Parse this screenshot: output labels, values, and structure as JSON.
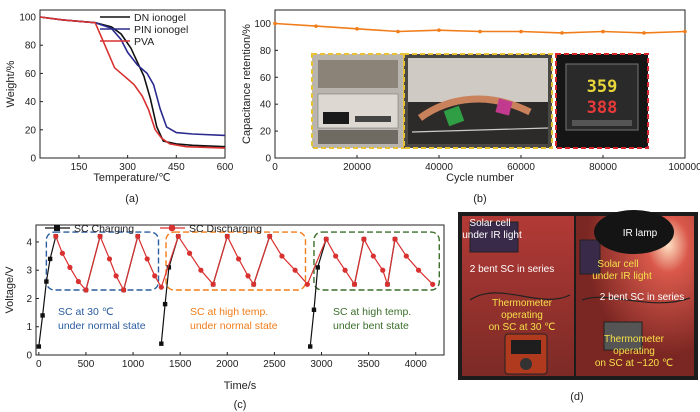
{
  "chart_data": [
    {
      "panel": "(a)",
      "type": "line",
      "xlabel": "Temperature/℃",
      "ylabel": "Weight/%",
      "xlim": [
        30,
        600
      ],
      "ylim": [
        0,
        105
      ],
      "xticks": [
        150,
        300,
        450,
        600
      ],
      "yticks": [
        0,
        20,
        40,
        60,
        80,
        100
      ],
      "legend": "top-right",
      "series": [
        {
          "name": "DN ionogel",
          "color": "#111111",
          "x": [
            30,
            100,
            200,
            250,
            280,
            310,
            330,
            350,
            370,
            390,
            410,
            450,
            500,
            600
          ],
          "y": [
            100,
            98,
            96,
            93,
            88,
            78,
            68,
            58,
            42,
            22,
            12,
            10,
            9,
            8
          ]
        },
        {
          "name": "PIN ionogel",
          "color": "#2b2b8f",
          "x": [
            30,
            100,
            200,
            250,
            280,
            300,
            330,
            360,
            380,
            400,
            420,
            450,
            500,
            600
          ],
          "y": [
            100,
            98,
            96,
            92,
            84,
            75,
            66,
            60,
            52,
            35,
            22,
            18,
            17,
            16
          ]
        },
        {
          "name": "PVA",
          "color": "#d93030",
          "x": [
            30,
            100,
            200,
            230,
            260,
            290,
            320,
            345,
            365,
            385,
            405,
            430,
            480,
            600
          ],
          "y": [
            100,
            98,
            96,
            80,
            64,
            58,
            52,
            44,
            34,
            20,
            14,
            10,
            8,
            7
          ]
        }
      ]
    },
    {
      "panel": "(b)",
      "type": "line",
      "xlabel": "Cycle number",
      "ylabel": "Capacitance retention/%",
      "xlim": [
        0,
        100000
      ],
      "ylim": [
        0,
        110
      ],
      "xticks": [
        0,
        20000,
        40000,
        60000,
        80000,
        100000
      ],
      "yticks": [
        0,
        20,
        40,
        60,
        80,
        100
      ],
      "series": [
        {
          "name": "",
          "color": "#f07d1a",
          "x": [
            0,
            10000,
            20000,
            30000,
            40000,
            50000,
            60000,
            70000,
            80000,
            90000,
            100000
          ],
          "y": [
            100,
            98,
            96,
            94,
            95,
            94,
            94,
            93,
            94,
            93,
            94
          ]
        }
      ]
    },
    {
      "panel": "(c)",
      "type": "line",
      "xlabel": "Time/s",
      "ylabel": "Voltage/V",
      "xlim": [
        -30,
        4300
      ],
      "ylim": [
        0,
        4.6
      ],
      "xticks": [
        0,
        500,
        1000,
        1500,
        2000,
        2500,
        3000,
        3500,
        4000
      ],
      "yticks": [
        0,
        1,
        2,
        3,
        4
      ],
      "legend": "top",
      "series": [
        {
          "name": "SC Charging",
          "color": "#111111",
          "x": [
            0,
            40,
            80,
            120,
            180,
            500,
            650,
            900,
            1050,
            1300,
            1340,
            1380,
            1480,
            1850,
            2000,
            2280,
            2450,
            2880,
            2920,
            2960,
            3050,
            3350,
            3450,
            3700,
            3780
          ],
          "y": [
            0.3,
            1.4,
            2.6,
            3.4,
            4.2,
            2.3,
            4.2,
            2.3,
            4.2,
            0.4,
            1.8,
            3.1,
            4.2,
            2.5,
            4.2,
            2.5,
            4.2,
            0.3,
            1.6,
            3.1,
            4.1,
            2.5,
            4.1,
            2.5,
            4.1
          ]
        },
        {
          "name": "SC Discharging",
          "color": "#d93030",
          "x": [
            180,
            250,
            330,
            420,
            500,
            650,
            750,
            820,
            900,
            1050,
            1150,
            1230,
            1300,
            1480,
            1600,
            1720,
            1850,
            2000,
            2120,
            2220,
            2280,
            2450,
            2580,
            2720,
            2850,
            3050,
            3150,
            3250,
            3350,
            3450,
            3550,
            3650,
            3700,
            3780,
            3900,
            4030,
            4180
          ],
          "y": [
            4.2,
            3.6,
            3.1,
            2.6,
            2.3,
            4.2,
            3.4,
            2.8,
            2.3,
            4.2,
            3.4,
            2.8,
            2.4,
            4.2,
            3.6,
            3.0,
            2.5,
            4.2,
            3.4,
            2.8,
            2.5,
            4.2,
            3.5,
            3.0,
            2.5,
            4.1,
            3.5,
            3.0,
            2.5,
            4.1,
            3.5,
            3.0,
            2.5,
            4.1,
            3.5,
            3.0,
            2.5
          ]
        }
      ],
      "annotations": [
        {
          "text": "SC at 30 ℃",
          "line2": "under normal state",
          "color": "#2a5c9e",
          "x_range": [
            80,
            1270
          ]
        },
        {
          "text": "SC at high temp.",
          "line2": "under normal state",
          "color": "#f07d1a",
          "x_range": [
            1350,
            2830
          ]
        },
        {
          "text": "SC at high temp.",
          "line2": "under bent state",
          "color": "#3b6e2a",
          "x_range": [
            2920,
            4250
          ]
        }
      ]
    }
  ],
  "captions": {
    "a": "(a)",
    "b": "(b)",
    "c": "(c)",
    "d": "(d)"
  },
  "photo_b": {
    "controller_top": "359",
    "controller_bottom": "388"
  },
  "photo_d": {
    "left_title_1": "Solar cell",
    "left_title_2": "under IR light",
    "left_series": "2 bent SC in series",
    "left_thermo_1": "Thermometer",
    "left_thermo_2": "operating",
    "left_thermo_3": "on SC at 30 ℃",
    "right_lamp": "IR lamp",
    "right_solar_1": "Solar cell",
    "right_solar_2": "under IR light",
    "right_series": "2 bent SC in series",
    "right_thermo_1": "Thermometer",
    "right_thermo_2": "operating",
    "right_thermo_3": "on SC at ~120 ℃"
  }
}
